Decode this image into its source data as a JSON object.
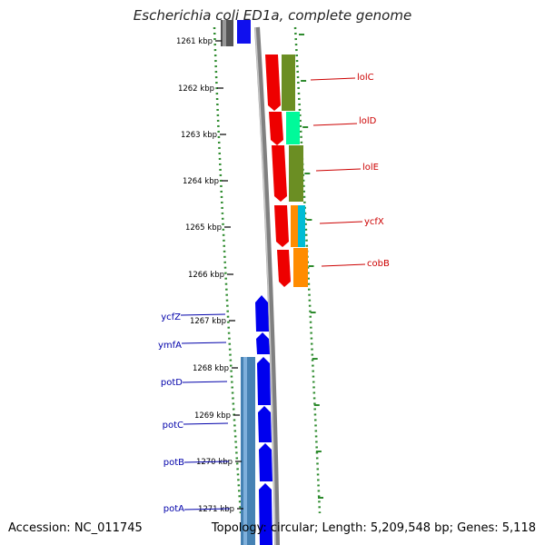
{
  "title": "Escherichia coli ED1a, complete genome",
  "footer": {
    "accession": "Accession: NC_011745",
    "stats": "Topology: circular; Length: 5,209,548 bp; Genes: 5,118"
  },
  "colors": {
    "forward_gene": "#0000ee",
    "forward_cog": "#4682b4",
    "reverse_gene": "#ee0000",
    "backbone": "#808080",
    "gc_dots": "#2e8b2e",
    "forward_label": "#0000aa",
    "reverse_label": "#cc0000"
  },
  "ruler": {
    "unit": "kbp",
    "ticks": [
      "1261 kbp",
      "1262 kbp",
      "1263 kbp",
      "1264 kbp",
      "1265 kbp",
      "1266 kbp",
      "1267 kbp",
      "1268 kbp",
      "1269 kbp",
      "1270 kbp",
      "1271 kbp"
    ]
  },
  "reverse_genes": [
    {
      "name": "lolC",
      "cog_color": "#6b8e23"
    },
    {
      "name": "lolD",
      "cog_color": "#00fa9a"
    },
    {
      "name": "lolE",
      "cog_color": "#6b8e23"
    },
    {
      "name": "ycfX",
      "cog_color": "#00bcd4"
    },
    {
      "name": "cobB",
      "cog_color": "#ff8c00"
    }
  ],
  "forward_genes": [
    {
      "name": "ycfZ"
    },
    {
      "name": "ymfA"
    },
    {
      "name": "potD"
    },
    {
      "name": "potC"
    },
    {
      "name": "potB"
    },
    {
      "name": "potA"
    }
  ]
}
